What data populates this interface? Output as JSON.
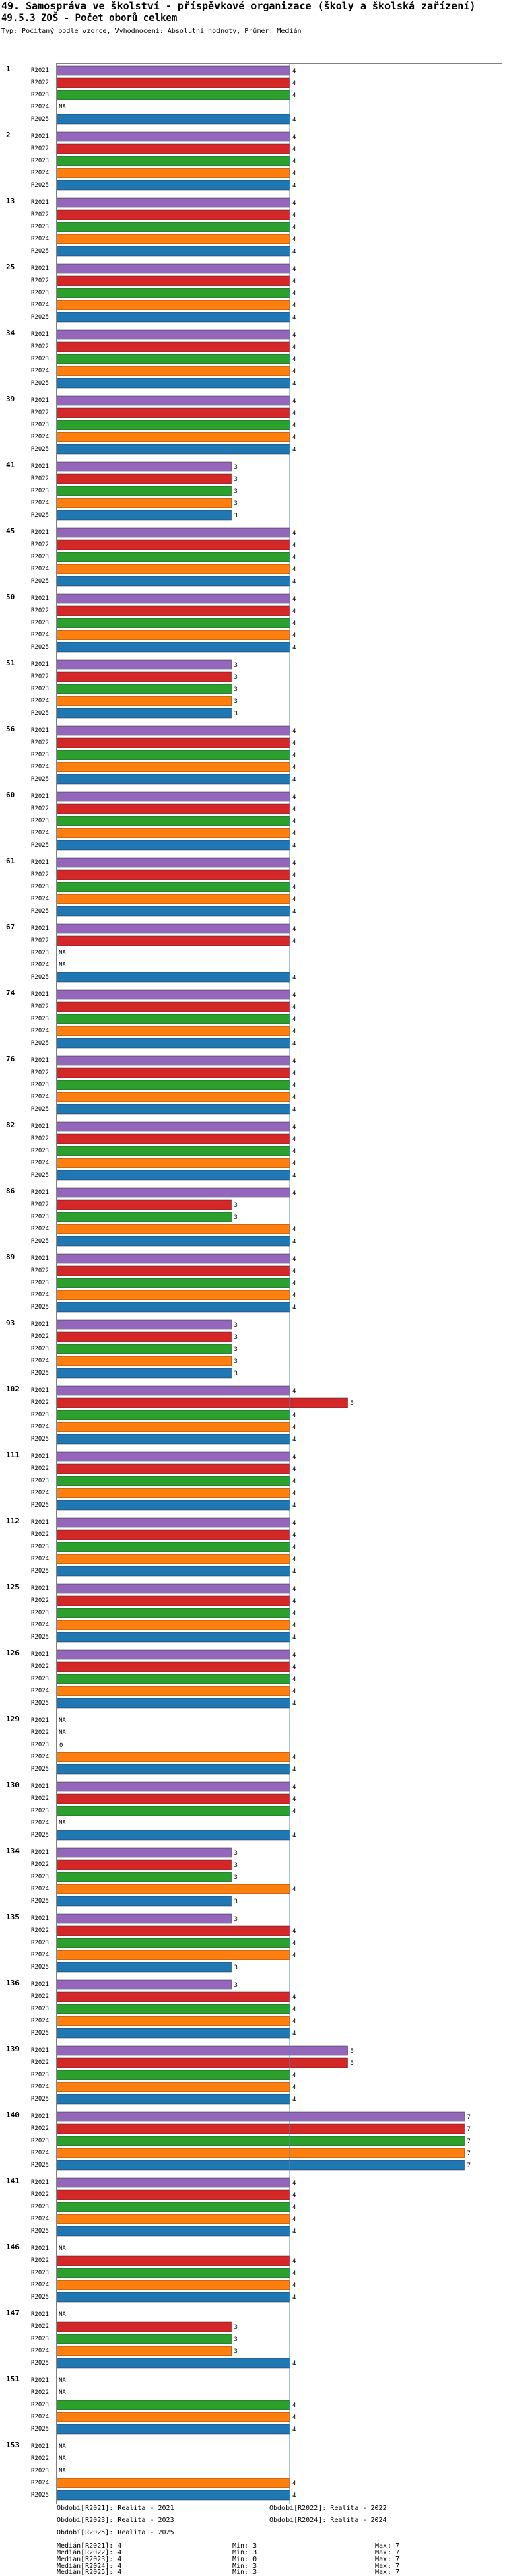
{
  "header": {
    "title": "49. Samospráva ve školství - příspěvkové organizace (školy a školská zařízení)",
    "subtitle": "49.5.3 ZOŠ - Počet oborů celkem",
    "info": "Typ: Počítaný podle vzorce, Vyhodnocení: Absolutní hodnoty, Průměr: Medián"
  },
  "chart_data": {
    "type": "bar",
    "orientation": "horizontal",
    "title": "49.5.3 ZOŠ - Počet oborů celkem",
    "xlim": [
      0,
      7
    ],
    "median_line": 4,
    "series_names": [
      "R2021",
      "R2022",
      "R2023",
      "R2024",
      "R2025"
    ],
    "series_colors": [
      "#9467bd",
      "#d62728",
      "#2ca02c",
      "#ff7f0e",
      "#1f77b4"
    ],
    "nan_label": "NA",
    "categories": [
      "1",
      "2",
      "13",
      "25",
      "34",
      "39",
      "41",
      "45",
      "50",
      "51",
      "56",
      "60",
      "61",
      "67",
      "74",
      "76",
      "82",
      "86",
      "89",
      "93",
      "102",
      "111",
      "112",
      "125",
      "126",
      "129",
      "130",
      "134",
      "135",
      "136",
      "139",
      "140",
      "141",
      "146",
      "147",
      "151",
      "153"
    ],
    "values": [
      [
        4,
        4,
        4,
        null,
        4
      ],
      [
        4,
        4,
        4,
        4,
        4
      ],
      [
        4,
        4,
        4,
        4,
        4
      ],
      [
        4,
        4,
        4,
        4,
        4
      ],
      [
        4,
        4,
        4,
        4,
        4
      ],
      [
        4,
        4,
        4,
        4,
        4
      ],
      [
        3,
        3,
        3,
        3,
        3
      ],
      [
        4,
        4,
        4,
        4,
        4
      ],
      [
        4,
        4,
        4,
        4,
        4
      ],
      [
        3,
        3,
        3,
        3,
        3
      ],
      [
        4,
        4,
        4,
        4,
        4
      ],
      [
        4,
        4,
        4,
        4,
        4
      ],
      [
        4,
        4,
        4,
        4,
        4
      ],
      [
        4,
        4,
        null,
        null,
        4
      ],
      [
        4,
        4,
        4,
        4,
        4
      ],
      [
        4,
        4,
        4,
        4,
        4
      ],
      [
        4,
        4,
        4,
        4,
        4
      ],
      [
        4,
        3,
        3,
        4,
        4
      ],
      [
        4,
        4,
        4,
        4,
        4
      ],
      [
        3,
        3,
        3,
        3,
        3
      ],
      [
        4,
        5,
        4,
        4,
        4
      ],
      [
        4,
        4,
        4,
        4,
        4
      ],
      [
        4,
        4,
        4,
        4,
        4
      ],
      [
        4,
        4,
        4,
        4,
        4
      ],
      [
        4,
        4,
        4,
        4,
        4
      ],
      [
        null,
        null,
        0,
        4,
        4
      ],
      [
        4,
        4,
        4,
        null,
        4
      ],
      [
        3,
        3,
        3,
        4,
        3
      ],
      [
        3,
        4,
        4,
        4,
        3
      ],
      [
        3,
        4,
        4,
        4,
        4
      ],
      [
        5,
        5,
        4,
        4,
        4
      ],
      [
        7,
        7,
        7,
        7,
        7
      ],
      [
        4,
        4,
        4,
        4,
        4
      ],
      [
        null,
        4,
        4,
        4,
        4
      ],
      [
        null,
        3,
        3,
        3,
        4
      ],
      [
        null,
        null,
        4,
        4,
        4
      ],
      [
        null,
        null,
        null,
        4,
        4
      ]
    ]
  },
  "legend": {
    "periods": [
      "Období[R2021]: Realita - 2021",
      "Období[R2022]: Realita - 2022",
      "Období[R2023]: Realita - 2023",
      "Období[R2024]: Realita - 2024",
      "Období[R2025]: Realita - 2025"
    ],
    "stats": [
      {
        "median": "Medián[R2021]: 4",
        "min": "Min: 3",
        "max": "Max: 7"
      },
      {
        "median": "Medián[R2022]: 4",
        "min": "Min: 3",
        "max": "Max: 7"
      },
      {
        "median": "Medián[R2023]: 4",
        "min": "Min: 0",
        "max": "Max: 7"
      },
      {
        "median": "Medián[R2024]: 4",
        "min": "Min: 3",
        "max": "Max: 7"
      },
      {
        "median": "Medián[R2025]: 4",
        "min": "Min: 3",
        "max": "Max: 7"
      }
    ]
  }
}
